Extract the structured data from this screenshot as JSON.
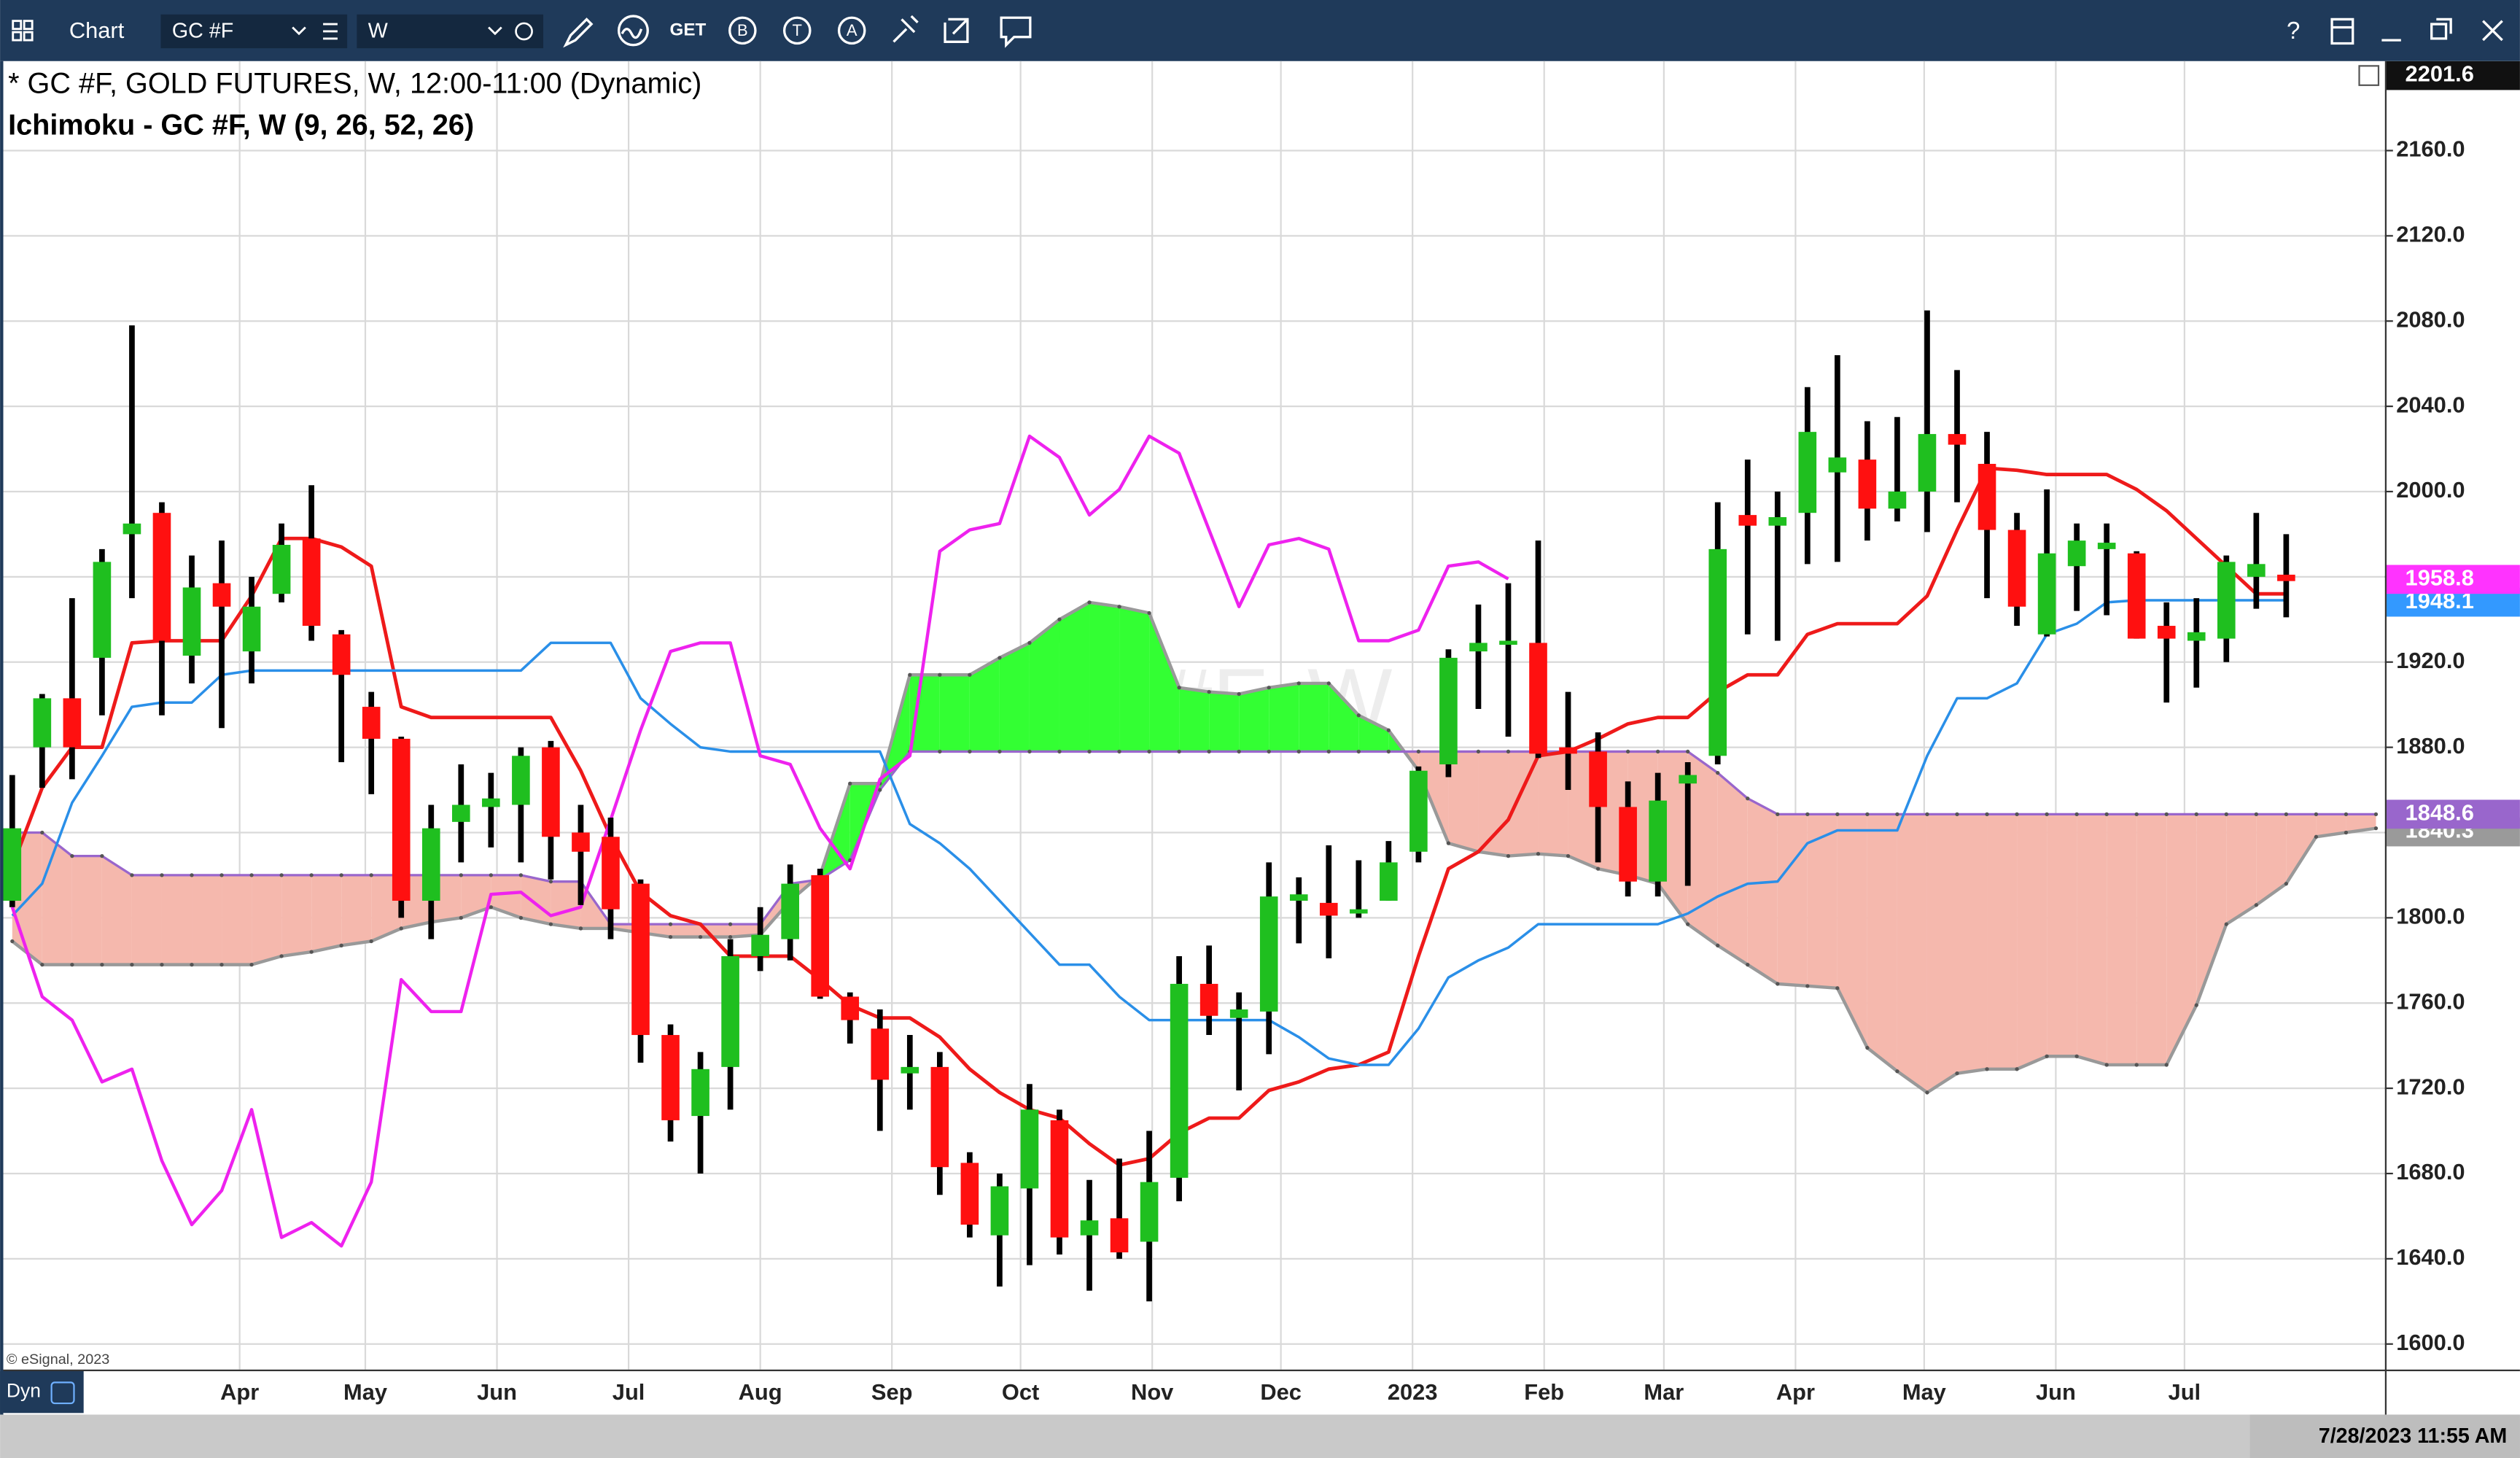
{
  "toolbar": {
    "title": "Chart",
    "symbol": "GC #F",
    "interval": "W",
    "buttons": [
      "GET",
      "B",
      "T",
      "A"
    ],
    "help": "?"
  },
  "chart_data": {
    "type": "candlestick",
    "title": "* GC #F, GOLD FUTURES, W, 12:00-11:00 (Dynamic)",
    "subtitle": "Ichimoku - GC #F, W (9, 26, 52, 26)",
    "watermark": "GC #F, W",
    "copyright": "© eSignal, 2023",
    "mode": "Dyn",
    "timestamp": "7/28/2023 11:55 AM",
    "up_color": "#1fbf1f",
    "down_color": "#ff1010",
    "wick_color": "#000000",
    "xlim": [
      -0.3,
      79.3
    ],
    "ylim": [
      1588,
      2202
    ],
    "yticks": [
      {
        "value": 1600,
        "label": "1600.0"
      },
      {
        "value": 1640,
        "label": "1640.0"
      },
      {
        "value": 1680,
        "label": "1680.0"
      },
      {
        "value": 1720,
        "label": "1720.0"
      },
      {
        "value": 1760,
        "label": "1760.0"
      },
      {
        "value": 1800,
        "label": "1800.0"
      },
      {
        "value": 1840,
        "label": "1840.0"
      },
      {
        "value": 1880,
        "label": "1880.0"
      },
      {
        "value": 1920,
        "label": "1920.0"
      },
      {
        "value": 1960,
        "label": "1960.0"
      },
      {
        "value": 2000,
        "label": "2000.0"
      },
      {
        "value": 2040,
        "label": "2040.0"
      },
      {
        "value": 2080,
        "label": "2080.0"
      },
      {
        "value": 2120,
        "label": "2120.0"
      },
      {
        "value": 2160,
        "label": "2160.0"
      }
    ],
    "xticks": [
      {
        "value": 7.6,
        "label": "Apr"
      },
      {
        "value": 11.8,
        "label": "May"
      },
      {
        "value": 16.2,
        "label": "Jun"
      },
      {
        "value": 20.6,
        "label": "Jul"
      },
      {
        "value": 25.0,
        "label": "Aug"
      },
      {
        "value": 29.4,
        "label": "Sep"
      },
      {
        "value": 33.7,
        "label": "Oct"
      },
      {
        "value": 38.1,
        "label": "Nov"
      },
      {
        "value": 42.4,
        "label": "Dec"
      },
      {
        "value": 46.8,
        "label": "2023"
      },
      {
        "value": 51.2,
        "label": "Feb"
      },
      {
        "value": 55.2,
        "label": "Mar"
      },
      {
        "value": 59.6,
        "label": "Apr"
      },
      {
        "value": 63.9,
        "label": "May"
      },
      {
        "value": 68.3,
        "label": "Jun"
      },
      {
        "value": 72.6,
        "label": "Jul"
      }
    ],
    "grid": true,
    "x": [
      0,
      1,
      2,
      3,
      4,
      5,
      6,
      7,
      8,
      9,
      10,
      11,
      12,
      13,
      14,
      15,
      16,
      17,
      18,
      19,
      20,
      21,
      22,
      23,
      24,
      25,
      26,
      27,
      28,
      29,
      30,
      31,
      32,
      33,
      34,
      35,
      36,
      37,
      38,
      39,
      40,
      41,
      42,
      43,
      44,
      45,
      46,
      47,
      48,
      49,
      50,
      51,
      52,
      53,
      54,
      55,
      56,
      57,
      58,
      59,
      60,
      61,
      62,
      63,
      64,
      65,
      66,
      67,
      68,
      69,
      70,
      71,
      72,
      73,
      74,
      75,
      76
    ],
    "open": [
      1808,
      1880,
      1903,
      1922,
      1980,
      1990,
      1923,
      1957,
      1925,
      1952,
      1978,
      1933,
      1899,
      1884,
      1808,
      1845,
      1852,
      1853,
      1880,
      1840,
      1838,
      1816,
      1745,
      1707,
      1730,
      1782,
      1790,
      1820,
      1763,
      1748,
      1727,
      1730,
      1685,
      1651,
      1673,
      1705,
      1651,
      1659,
      1648,
      1678,
      1769,
      1753,
      1756,
      1808,
      1807,
      1802,
      1808,
      1831,
      1872,
      1925,
      1929,
      1929,
      1880,
      1878,
      1852,
      1817,
      1863,
      1876,
      1989,
      1984,
      1990,
      2009,
      2015,
      1992,
      2000,
      2027,
      2013,
      1982,
      1933,
      1965,
      1973,
      1971,
      1937,
      1930,
      1931,
      1960,
      1961
    ],
    "high": [
      1867,
      1905,
      1950,
      1973,
      2078,
      1995,
      1970,
      1977,
      1960,
      1985,
      2003,
      1935,
      1906,
      1885,
      1853,
      1872,
      1868,
      1880,
      1883,
      1853,
      1847,
      1818,
      1750,
      1737,
      1790,
      1805,
      1825,
      1823,
      1765,
      1757,
      1745,
      1737,
      1690,
      1680,
      1722,
      1710,
      1677,
      1687,
      1700,
      1782,
      1787,
      1765,
      1826,
      1819,
      1834,
      1827,
      1836,
      1871,
      1926,
      1947,
      1957,
      1977,
      1906,
      1887,
      1864,
      1868,
      1873,
      1995,
      2015,
      2000,
      2049,
      2064,
      2033,
      2035,
      2085,
      2057,
      2028,
      1990,
      2001,
      1985,
      1985,
      1972,
      1948,
      1950,
      1970,
      1990,
      1980
    ],
    "low": [
      1805,
      1861,
      1865,
      1895,
      1950,
      1895,
      1910,
      1889,
      1910,
      1948,
      1930,
      1873,
      1858,
      1800,
      1790,
      1826,
      1833,
      1826,
      1818,
      1806,
      1790,
      1732,
      1695,
      1680,
      1710,
      1775,
      1780,
      1762,
      1741,
      1700,
      1710,
      1670,
      1650,
      1627,
      1637,
      1642,
      1625,
      1640,
      1620,
      1667,
      1745,
      1719,
      1736,
      1788,
      1781,
      1800,
      1808,
      1826,
      1866,
      1898,
      1885,
      1875,
      1860,
      1826,
      1810,
      1810,
      1815,
      1872,
      1933,
      1930,
      1966,
      1967,
      1977,
      1986,
      1981,
      1995,
      1950,
      1937,
      1932,
      1944,
      1942,
      1931,
      1901,
      1908,
      1920,
      1945,
      1941
    ],
    "close": [
      1842,
      1903,
      1880,
      1967,
      1985,
      1930,
      1955,
      1946,
      1946,
      1975,
      1937,
      1914,
      1884,
      1808,
      1842,
      1853,
      1856,
      1876,
      1838,
      1831,
      1804,
      1745,
      1705,
      1729,
      1782,
      1792,
      1816,
      1763,
      1752,
      1724,
      1730,
      1683,
      1656,
      1674,
      1710,
      1650,
      1658,
      1643,
      1676,
      1769,
      1754,
      1757,
      1810,
      1811,
      1801,
      1804,
      1826,
      1869,
      1922,
      1929,
      1930,
      1877,
      1877,
      1852,
      1817,
      1855,
      1867,
      1973,
      1984,
      1988,
      2028,
      2016,
      1992,
      2000,
      2027,
      2022,
      1982,
      1946,
      1971,
      1977,
      1976,
      1931,
      1931,
      1934,
      1967,
      1966,
      1958
    ],
    "lines": [
      {
        "color": "#ee1a1a",
        "width": 2.2,
        "x": [
          0,
          1,
          2,
          3,
          4,
          5,
          6,
          7,
          8,
          9,
          10,
          11,
          12,
          13,
          14,
          15,
          16,
          17,
          18,
          19,
          20,
          21,
          22,
          23,
          24,
          25,
          26,
          27,
          28,
          29,
          30,
          31,
          32,
          33,
          34,
          35,
          36,
          37,
          38,
          39,
          40,
          41,
          42,
          43,
          44,
          45,
          46,
          47,
          48,
          49,
          50,
          51,
          52,
          53,
          54,
          55,
          56,
          57,
          58,
          59,
          60,
          61,
          62,
          63,
          64,
          65,
          66,
          67,
          68,
          69,
          70,
          71,
          72,
          73,
          74,
          75,
          76
        ],
        "values": [
          1824,
          1861,
          1880,
          1880,
          1929,
          1930,
          1930,
          1930,
          1951,
          1978,
          1978,
          1974,
          1965,
          1899,
          1894,
          1894,
          1894,
          1894,
          1894,
          1869,
          1838,
          1812,
          1801,
          1797,
          1782,
          1782,
          1782,
          1771,
          1759,
          1753,
          1753,
          1744,
          1729,
          1718,
          1710,
          1706,
          1694,
          1684,
          1687,
          1699,
          1706,
          1706,
          1719,
          1723,
          1729,
          1731,
          1737,
          1782,
          1823,
          1831,
          1846,
          1876,
          1878,
          1884,
          1891,
          1894,
          1894,
          1906,
          1914,
          1914,
          1933,
          1938,
          1938,
          1938,
          1951,
          1982,
          2011,
          2010,
          2008,
          2008,
          2008,
          2001,
          1991,
          1978,
          1965,
          1952,
          1952
        ]
      },
      {
        "color": "#2a8fe8",
        "width": 1.6,
        "x": [
          0,
          1,
          2,
          3,
          4,
          5,
          6,
          7,
          8,
          9,
          10,
          11,
          12,
          13,
          14,
          15,
          16,
          17,
          18,
          19,
          20,
          21,
          22,
          23,
          24,
          25,
          26,
          27,
          28,
          29,
          30,
          31,
          32,
          33,
          34,
          35,
          36,
          37,
          38,
          39,
          40,
          41,
          42,
          43,
          44,
          45,
          46,
          47,
          48,
          49,
          50,
          51,
          52,
          53,
          54,
          55,
          56,
          57,
          58,
          59,
          60,
          61,
          62,
          63,
          64,
          65,
          66,
          67,
          68,
          69,
          70,
          71,
          72,
          73,
          74,
          75,
          76
        ],
        "values": [
          1801,
          1816,
          1854,
          1876,
          1899,
          1901,
          1901,
          1914,
          1916,
          1916,
          1916,
          1916,
          1916,
          1916,
          1916,
          1916,
          1916,
          1916,
          1929,
          1929,
          1929,
          1903,
          1891,
          1880,
          1878,
          1878,
          1878,
          1878,
          1878,
          1878,
          1844,
          1835,
          1823,
          1808,
          1793,
          1778,
          1778,
          1763,
          1752,
          1752,
          1752,
          1752,
          1752,
          1744,
          1734,
          1731,
          1731,
          1748,
          1772,
          1780,
          1786,
          1797,
          1797,
          1797,
          1797,
          1797,
          1802,
          1810,
          1816,
          1817,
          1835,
          1841,
          1841,
          1841,
          1876,
          1903,
          1903,
          1910,
          1933,
          1938,
          1948,
          1949,
          1949,
          1949,
          1949,
          1949,
          1949
        ]
      },
      {
        "color": "#ee22ee",
        "width": 2,
        "x": [
          0,
          1,
          2,
          3,
          4,
          5,
          6,
          7,
          8,
          9,
          10,
          11,
          12,
          13,
          14,
          15,
          16,
          17,
          18,
          19,
          20,
          21,
          22,
          23,
          24,
          25,
          26,
          27,
          28,
          29,
          30,
          31,
          32,
          33,
          34,
          35,
          36,
          37,
          38,
          39,
          40,
          41,
          42,
          43,
          44,
          45,
          46,
          47,
          48,
          49,
          50
        ],
        "values": [
          1805,
          1763,
          1752,
          1723,
          1729,
          1686,
          1656,
          1672,
          1710,
          1650,
          1657,
          1646,
          1676,
          1771,
          1756,
          1756,
          1811,
          1812,
          1801,
          1805,
          1846,
          1888,
          1925,
          1929,
          1929,
          1876,
          1872,
          1842,
          1823,
          1865,
          1876,
          1972,
          1982,
          1985,
          2026,
          2016,
          1989,
          2001,
          2026,
          2018,
          1982,
          1946,
          1975,
          1978,
          1973,
          1930,
          1930,
          1935,
          1965,
          1967,
          1959
        ]
      }
    ],
    "cloud": {
      "bull_color": "#33ff33",
      "bear_color": "#f5b8ad",
      "span_a": {
        "color": "#999999",
        "x": [
          0,
          1,
          2,
          3,
          4,
          5,
          6,
          7,
          8,
          9,
          10,
          11,
          12,
          13,
          14,
          15,
          16,
          17,
          18,
          19,
          20,
          21,
          22,
          23,
          24,
          25,
          26,
          27,
          28,
          29,
          30,
          31,
          32,
          33,
          34,
          35,
          36,
          37,
          38,
          39,
          40,
          41,
          42,
          43,
          44,
          45,
          46,
          47,
          48,
          49,
          50,
          51,
          52,
          53,
          54,
          55,
          56,
          57,
          58,
          59,
          60,
          61,
          62,
          63,
          64,
          65,
          66,
          67,
          68,
          69,
          70,
          71,
          72,
          73,
          74,
          75,
          76,
          77,
          78,
          79
        ],
        "values": [
          1789,
          1778,
          1778,
          1778,
          1778,
          1778,
          1778,
          1778,
          1778,
          1782,
          1784,
          1787,
          1789,
          1795,
          1798,
          1800,
          1805,
          1800,
          1797,
          1795,
          1795,
          1793,
          1791,
          1791,
          1791,
          1792,
          1808,
          1820,
          1863,
          1863,
          1914,
          1914,
          1914,
          1922,
          1929,
          1940,
          1948,
          1946,
          1943,
          1908,
          1906,
          1905,
          1908,
          1910,
          1910,
          1895,
          1888,
          1869,
          1835,
          1831,
          1829,
          1830,
          1829,
          1823,
          1820,
          1816,
          1797,
          1787,
          1778,
          1769,
          1768,
          1767,
          1739,
          1728,
          1718,
          1727,
          1729,
          1729,
          1735,
          1735,
          1731,
          1731,
          1731,
          1759,
          1797,
          1806,
          1816,
          1838,
          1840,
          1842
        ]
      },
      "span_b": {
        "color": "#9966cc",
        "x": [
          0,
          1,
          2,
          3,
          4,
          5,
          6,
          7,
          8,
          9,
          10,
          11,
          12,
          13,
          14,
          15,
          16,
          17,
          18,
          19,
          20,
          21,
          22,
          23,
          24,
          25,
          26,
          27,
          28,
          29,
          30,
          31,
          32,
          33,
          34,
          35,
          36,
          37,
          38,
          39,
          40,
          41,
          42,
          43,
          44,
          45,
          46,
          47,
          48,
          49,
          50,
          51,
          52,
          53,
          54,
          55,
          56,
          57,
          58,
          59,
          60,
          61,
          62,
          63,
          64,
          65,
          66,
          67,
          68,
          69,
          70,
          71,
          72,
          73,
          74,
          75,
          76,
          77,
          78,
          79
        ],
        "values": [
          1840,
          1840,
          1829,
          1829,
          1820,
          1820,
          1820,
          1820,
          1820,
          1820,
          1820,
          1820,
          1820,
          1820,
          1820,
          1820,
          1820,
          1820,
          1817,
          1817,
          1797,
          1797,
          1797,
          1797,
          1797,
          1797,
          1816,
          1818,
          1827,
          1860,
          1878,
          1878,
          1878,
          1878,
          1878,
          1878,
          1878,
          1878,
          1878,
          1878,
          1878,
          1878,
          1878,
          1878,
          1878,
          1878,
          1878,
          1878,
          1878,
          1878,
          1878,
          1878,
          1878,
          1878,
          1878,
          1878,
          1878,
          1868,
          1856,
          1848.6,
          1848.6,
          1848.6,
          1848.6,
          1848.6,
          1848.6,
          1848.6,
          1848.6,
          1848.6,
          1848.6,
          1848.6,
          1848.6,
          1848.6,
          1848.6,
          1848.6,
          1848.6,
          1848.6,
          1848.6,
          1848.6,
          1848.6,
          1848.6
        ]
      }
    },
    "price_labels": [
      {
        "value": 1840.3,
        "color": "#9a9a9a",
        "text_color": "#ffffff"
      },
      {
        "value": 1848.6,
        "color": "#9966cc",
        "text_color": "#ffffff"
      },
      {
        "value": 1948.1,
        "color": "#3399ff",
        "text_color": "#ffffff"
      },
      {
        "value": 1958.8,
        "color": "#ff33ff",
        "text_color": "#ffffff"
      },
      {
        "value": 2201.6,
        "color": "#111111",
        "text_color": "#ffffff"
      }
    ]
  }
}
